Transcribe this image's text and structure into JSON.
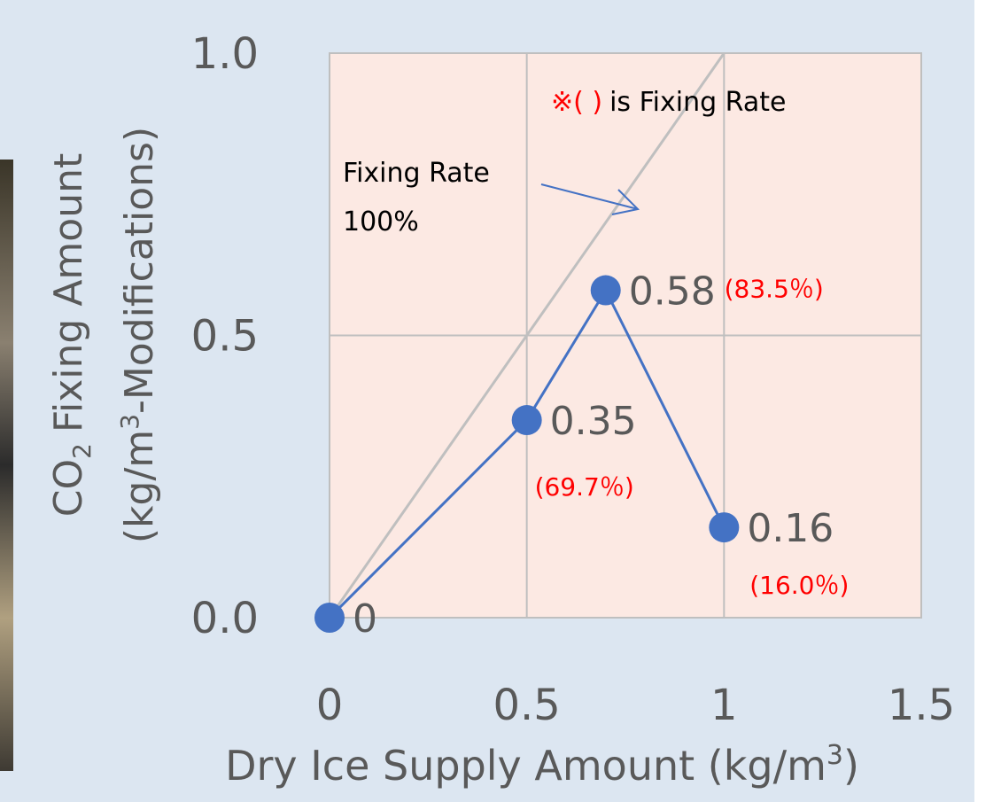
{
  "chart_data": {
    "type": "line",
    "x": [
      0,
      0.5,
      0.7,
      1.0
    ],
    "values": [
      0,
      0.35,
      0.58,
      0.16
    ],
    "color": "#4472c4",
    "rate_labels": [
      null,
      "(69.7％)",
      "(83.5％)",
      "(16.0％)"
    ],
    "reference_line": {
      "x": [
        0,
        1
      ],
      "values": [
        0,
        1
      ],
      "color": "#bfbfbf"
    },
    "reference_label": [
      "Fixing Rate",
      "100%"
    ],
    "note": [
      "※( )",
      "is Fixing Rate"
    ],
    "xlim": [
      0,
      1.5
    ],
    "xticks": [
      0,
      0.5,
      1,
      1.5
    ],
    "ylim": [
      0,
      1
    ],
    "yticks": [
      {
        "value": 0,
        "label": "0.0"
      },
      0.5,
      {
        "value": 1,
        "label": "1.0"
      }
    ],
    "grid": true,
    "xlabel": [
      "Dry Ice Supply Amount (kg/m",
      "3",
      ")"
    ],
    "ylabel": [
      [
        "CO",
        "2",
        "Fixing Amount"
      ],
      [
        "(kg/m",
        "3",
        "-Modifications)"
      ]
    ]
  }
}
